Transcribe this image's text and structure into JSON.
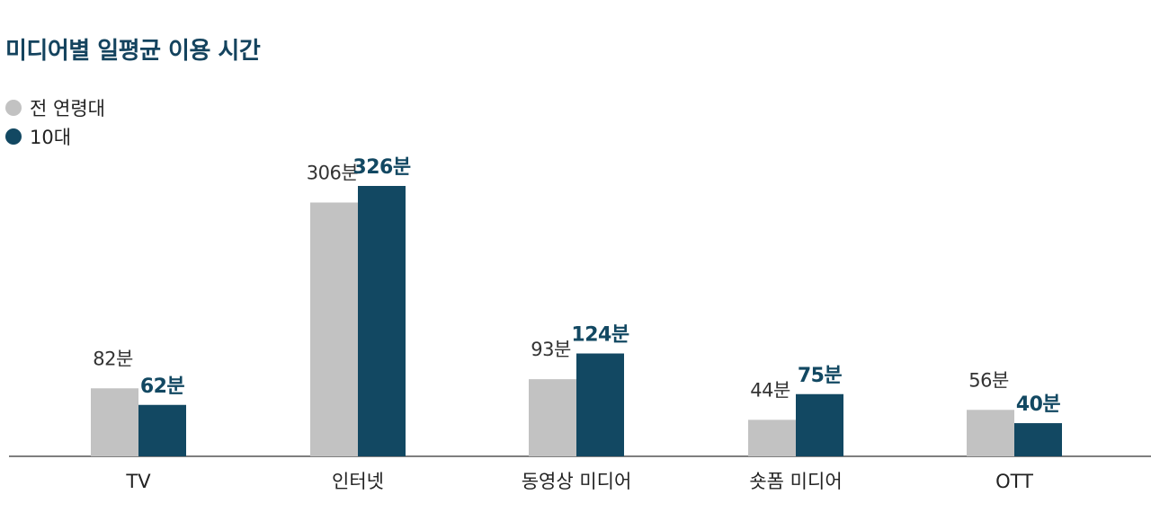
{
  "title": "미디어별 일평균 이용 시간",
  "colors": {
    "all_ages": "#c2c2c2",
    "teens": "#124862",
    "title": "#14435e",
    "axis": "#555555"
  },
  "chart_data": {
    "type": "bar",
    "title": "미디어별 일평균 이용 시간",
    "xlabel": "",
    "ylabel": "",
    "categories": [
      "TV",
      "인터넷",
      "동영상 미디어",
      "숏폼 미디어",
      "OTT"
    ],
    "series": [
      {
        "name": "전 연령대",
        "values": [
          82,
          306,
          93,
          44,
          56
        ],
        "labels": [
          "82분",
          "306분",
          "93분",
          "44분",
          "56분"
        ]
      },
      {
        "name": "10대",
        "values": [
          62,
          326,
          124,
          75,
          40
        ],
        "labels": [
          "62분",
          "326분",
          "124분",
          "75분",
          "40분"
        ]
      }
    ],
    "ylim": [
      0,
      326
    ],
    "grid": false,
    "legend_position": "top-left"
  }
}
